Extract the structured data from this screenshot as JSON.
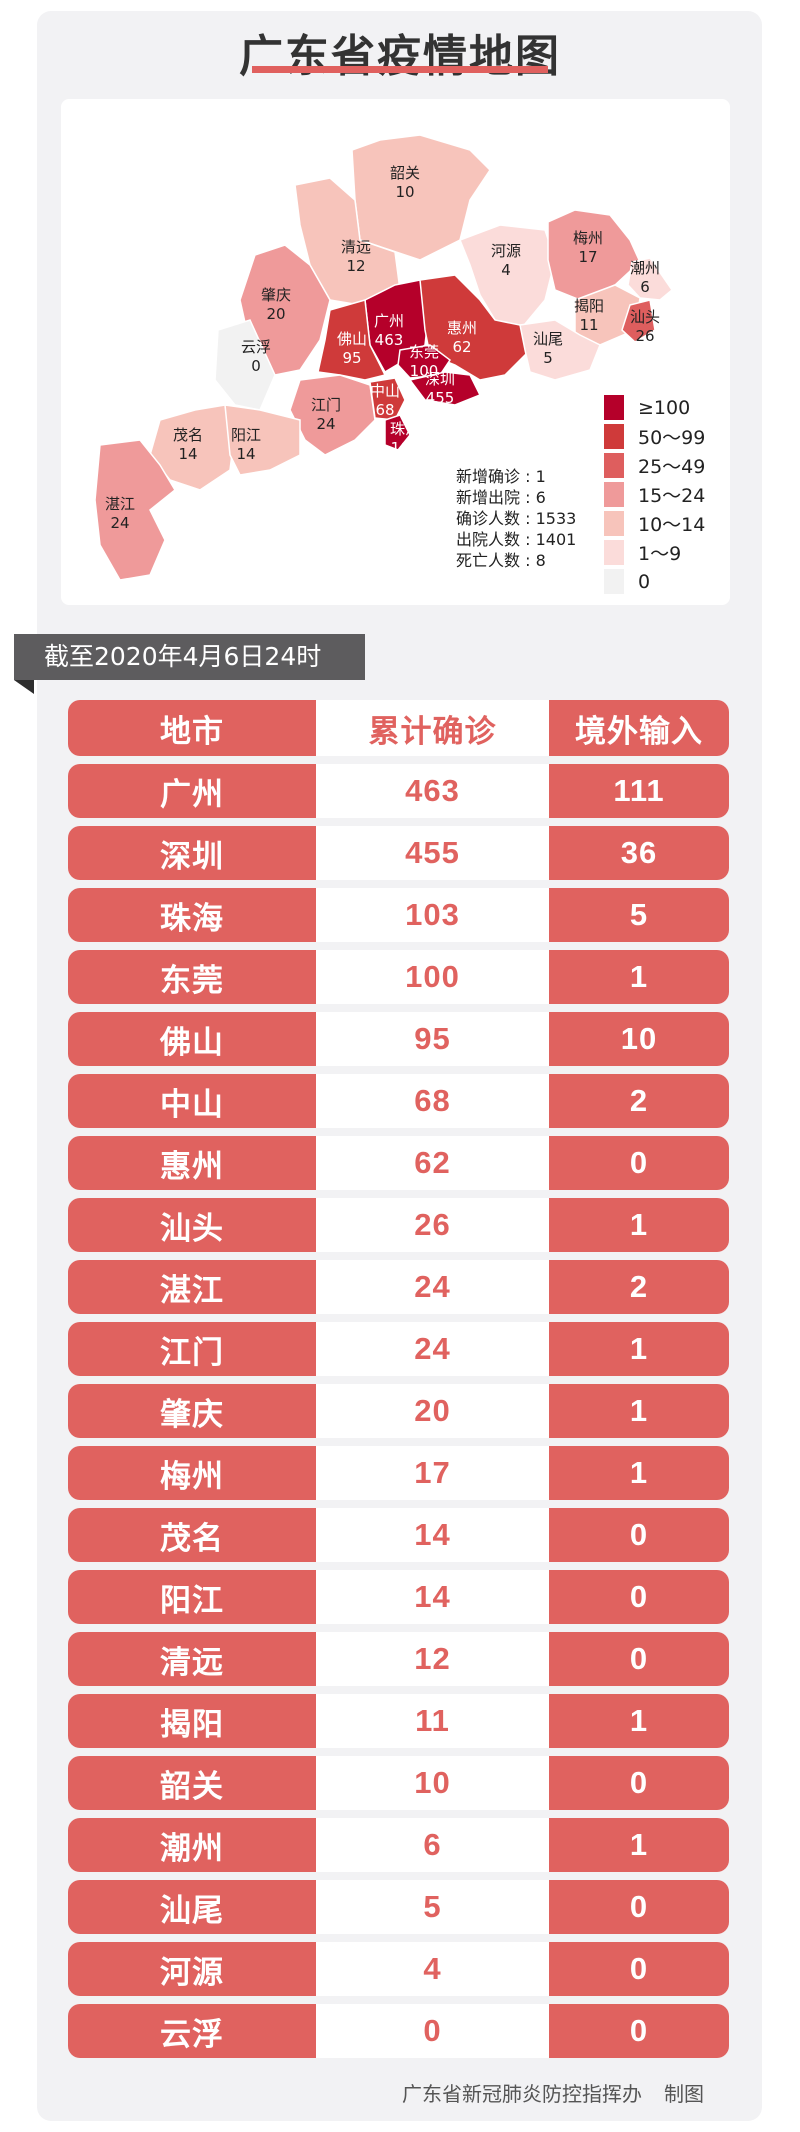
{
  "title": "广东省疫情地图",
  "colors": {
    "accent": "#e0605e",
    "banner": "#5d5c5e",
    "card_bg": "#f2f2f4"
  },
  "map": {
    "cities": [
      {
        "name": "韶关",
        "value": "10"
      },
      {
        "name": "清远",
        "value": "12"
      },
      {
        "name": "河源",
        "value": "4"
      },
      {
        "name": "梅州",
        "value": "17"
      },
      {
        "name": "潮州",
        "value": "6"
      },
      {
        "name": "揭阳",
        "value": "11"
      },
      {
        "name": "汕头",
        "value": "26"
      },
      {
        "name": "肇庆",
        "value": "20"
      },
      {
        "name": "云浮",
        "value": "0"
      },
      {
        "name": "广州",
        "value": "463"
      },
      {
        "name": "惠州",
        "value": "62"
      },
      {
        "name": "佛山",
        "value": "95"
      },
      {
        "name": "东莞",
        "value": "100"
      },
      {
        "name": "汕尾",
        "value": "5"
      },
      {
        "name": "深圳",
        "value": "455"
      },
      {
        "name": "中山",
        "value": "68"
      },
      {
        "name": "江门",
        "value": "24"
      },
      {
        "name": "珠海",
        "value": "103"
      },
      {
        "name": "茂名",
        "value": "14"
      },
      {
        "name": "阳江",
        "value": "14"
      },
      {
        "name": "湛江",
        "value": "24"
      }
    ],
    "legend": [
      {
        "label": "≥100",
        "color": "#b5002a"
      },
      {
        "label": "50～99",
        "color": "#cf3a3a"
      },
      {
        "label": "25～49",
        "color": "#de5e5e"
      },
      {
        "label": "15～24",
        "color": "#ef9a9a"
      },
      {
        "label": "10～14",
        "color": "#f7c4bb"
      },
      {
        "label": "1～9",
        "color": "#fbdcda"
      },
      {
        "label": "0",
        "color": "#f2f2f2"
      }
    ],
    "stats": [
      {
        "label": "新增确诊",
        "value": "1"
      },
      {
        "label": "新增出院",
        "value": "6"
      },
      {
        "label": "确诊人数",
        "value": "1533"
      },
      {
        "label": "出院人数",
        "value": "1401"
      },
      {
        "label": "死亡人数",
        "value": "8"
      }
    ]
  },
  "date_banner": "截至2020年4月6日24时",
  "table": {
    "headers": [
      "地市",
      "累计确诊",
      "境外输入"
    ],
    "rows": [
      [
        "广州",
        "463",
        "111"
      ],
      [
        "深圳",
        "455",
        "36"
      ],
      [
        "珠海",
        "103",
        "5"
      ],
      [
        "东莞",
        "100",
        "1"
      ],
      [
        "佛山",
        "95",
        "10"
      ],
      [
        "中山",
        "68",
        "2"
      ],
      [
        "惠州",
        "62",
        "0"
      ],
      [
        "汕头",
        "26",
        "1"
      ],
      [
        "湛江",
        "24",
        "2"
      ],
      [
        "江门",
        "24",
        "1"
      ],
      [
        "肇庆",
        "20",
        "1"
      ],
      [
        "梅州",
        "17",
        "1"
      ],
      [
        "茂名",
        "14",
        "0"
      ],
      [
        "阳江",
        "14",
        "0"
      ],
      [
        "清远",
        "12",
        "0"
      ],
      [
        "揭阳",
        "11",
        "1"
      ],
      [
        "韶关",
        "10",
        "0"
      ],
      [
        "潮州",
        "6",
        "1"
      ],
      [
        "汕尾",
        "5",
        "0"
      ],
      [
        "河源",
        "4",
        "0"
      ],
      [
        "云浮",
        "0",
        "0"
      ]
    ]
  },
  "footer": {
    "org": "广东省新冠肺炎防控指挥办",
    "suffix": "制图"
  }
}
